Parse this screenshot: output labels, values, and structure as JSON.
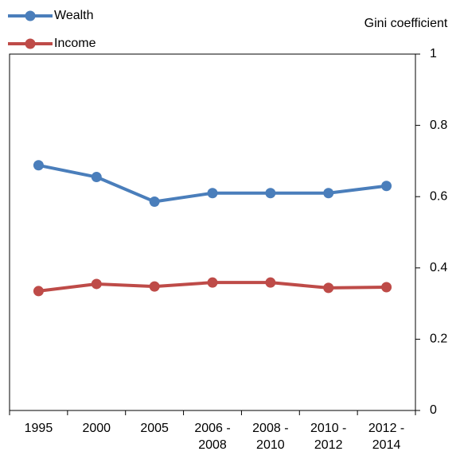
{
  "chart_data": {
    "type": "line",
    "y_axis_label": "Gini coefficient",
    "categories": [
      "1995",
      "2000",
      "2005",
      "2006 -\n2008",
      "2008 -\n2010",
      "2010 -\n2012",
      "2012 -\n2014"
    ],
    "series": [
      {
        "name": "Wealth",
        "color": "#4a7ebb",
        "values": [
          0.688,
          0.655,
          0.586,
          0.61,
          0.61,
          0.61,
          0.63
        ]
      },
      {
        "name": "Income",
        "color": "#be4b48",
        "values": [
          0.335,
          0.355,
          0.348,
          0.359,
          0.359,
          0.344,
          0.346
        ]
      }
    ],
    "ylim": [
      0,
      1
    ],
    "yticks": [
      0,
      0.2,
      0.4,
      0.6,
      0.8,
      1
    ],
    "y_axis_side": "right",
    "grid": false
  }
}
